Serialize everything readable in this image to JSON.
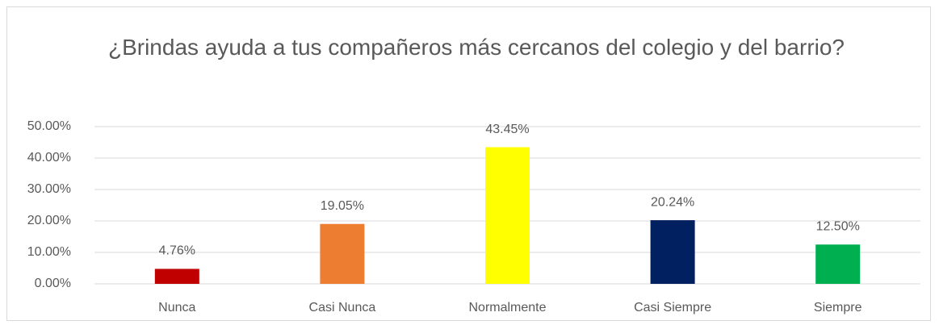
{
  "chart_data": {
    "type": "bar",
    "title": "¿Brindas ayuda a tus compañeros más cercanos del colegio y del barrio?",
    "categories": [
      "Nunca",
      "Casi Nunca",
      "Normalmente",
      "Casi Siempre",
      "Siempre"
    ],
    "values": [
      4.76,
      19.05,
      43.45,
      20.24,
      12.5
    ],
    "value_labels": [
      "4.76%",
      "19.05%",
      "43.45%",
      "20.24%",
      "12.50%"
    ],
    "colors": [
      "#c00000",
      "#ed7d31",
      "#ffff00",
      "#002060",
      "#00b050"
    ],
    "ylim": [
      0,
      50
    ],
    "yticks": [
      {
        "value": 0,
        "label": "0.00%"
      },
      {
        "value": 10,
        "label": "10.00%"
      },
      {
        "value": 20,
        "label": "20.00%"
      },
      {
        "value": 30,
        "label": "30.00%"
      },
      {
        "value": 40,
        "label": "40.00%"
      },
      {
        "value": 50,
        "label": "50.00%"
      }
    ],
    "grid": true
  }
}
